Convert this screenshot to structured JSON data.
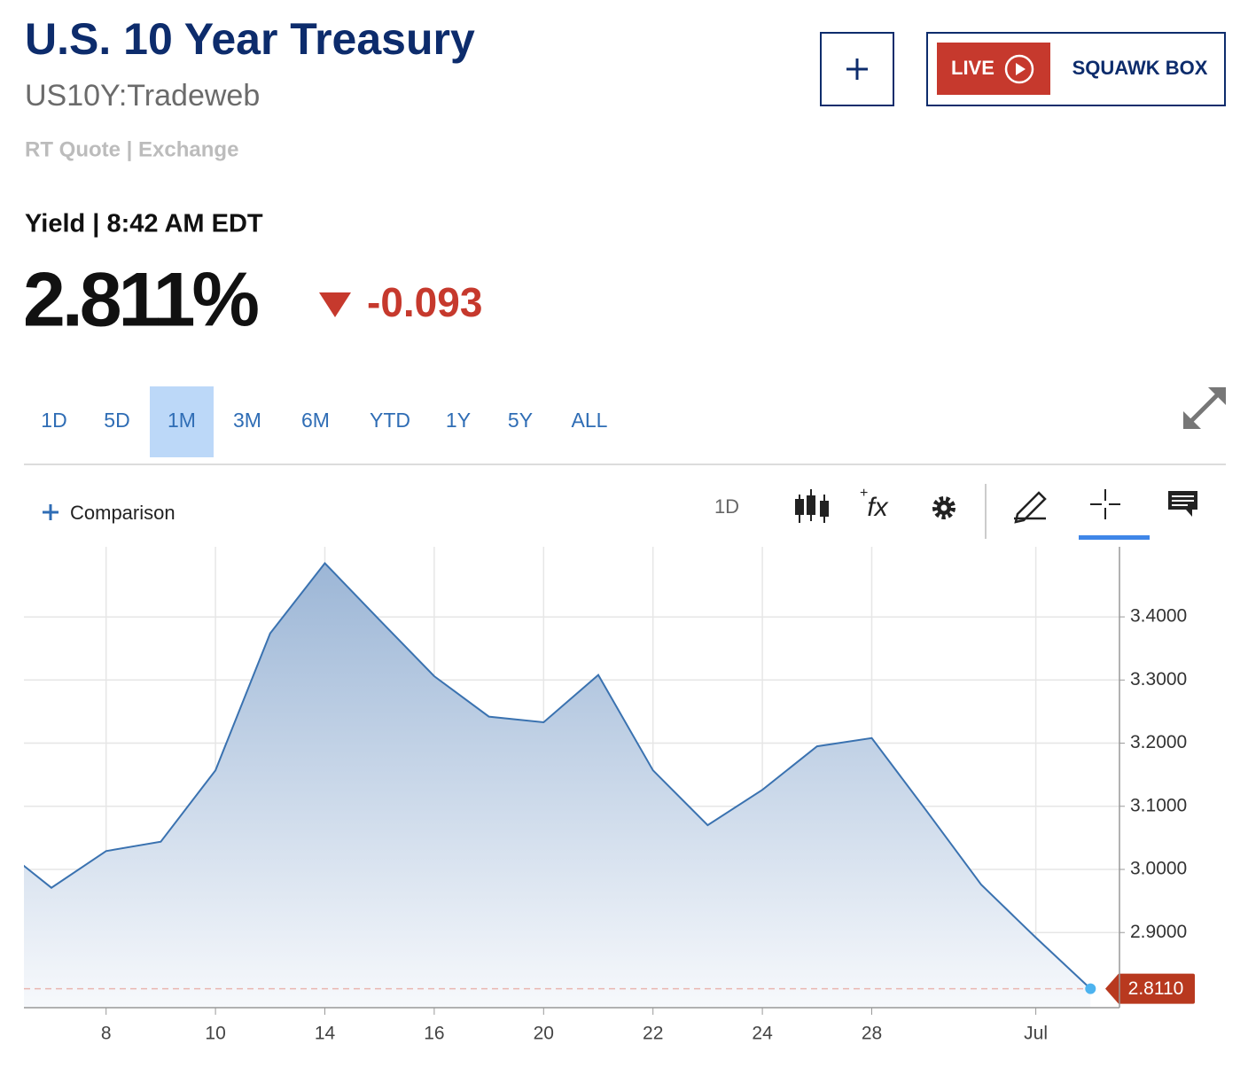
{
  "header": {
    "title": "U.S. 10 Year Treasury",
    "symbol": "US10Y:Tradeweb",
    "quote_info": "RT Quote | Exchange",
    "live": "LIVE",
    "show": "SQUAWK BOX"
  },
  "quote": {
    "label": "Yield | 8:42 AM EDT",
    "price": "2.811%",
    "change": "-0.093"
  },
  "ranges": {
    "items": [
      "1D",
      "5D",
      "1M",
      "3M",
      "6M",
      "YTD",
      "1Y",
      "5Y",
      "ALL"
    ],
    "selected": "1M"
  },
  "toolbar": {
    "comparison": "Comparison",
    "interval": "1D",
    "studies": "fx"
  },
  "chart_data": {
    "type": "area",
    "categories": [
      null,
      null,
      "8",
      null,
      "10",
      null,
      "14",
      null,
      "16",
      null,
      "20",
      null,
      "22",
      null,
      "24",
      null,
      "28",
      null,
      null,
      "Jul",
      null
    ],
    "series": [
      {
        "name": "US10Y",
        "color": "#3a72b0",
        "values": [
          3.04,
          2.971,
          3.029,
          3.044,
          3.157,
          3.374,
          3.485,
          3.395,
          3.306,
          3.242,
          3.233,
          3.308,
          3.157,
          3.07,
          3.126,
          3.195,
          3.208,
          3.093,
          2.976,
          2.892,
          2.811
        ]
      }
    ],
    "last_value_label": "2.8110",
    "ylim": [
      2.781,
      3.511
    ],
    "yticks": [
      {
        "value": 2.9,
        "label": "2.9000"
      },
      {
        "value": 3.0,
        "label": "3.0000"
      },
      {
        "value": 3.1,
        "label": "3.1000"
      },
      {
        "value": 3.2,
        "label": "3.2000"
      },
      {
        "value": 3.3,
        "label": "3.3000"
      },
      {
        "value": 3.4,
        "label": "3.4000"
      }
    ],
    "grid": true
  }
}
